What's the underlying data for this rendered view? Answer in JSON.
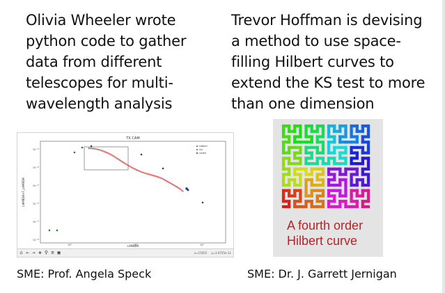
{
  "left_panel": {
    "description_lines": [
      "Olivia Wheeler wrote",
      "python code to gather",
      "data from different",
      "telescopes for multi-",
      "wavelength analysis"
    ],
    "sme": "SME: Prof. Angela Speck",
    "plot": {
      "title": "TX CAM",
      "xlabel": "LAMBDA",
      "ylabel": "LAMBDA×F_LAMBDA",
      "legend": [
        {
          "label": "SIMBAD",
          "color": "#1f7a2a"
        },
        {
          "label": "ISO",
          "color": "#d62728"
        },
        {
          "label": "VIZIER",
          "color": "#1f3a93"
        }
      ],
      "x_tick_labels": [
        "10⁰",
        "10¹",
        "10²"
      ],
      "y_tick_labels": [
        "10⁻¹³",
        "10⁻¹⁴",
        "10⁻¹⁵",
        "10⁻¹⁶",
        "10⁻¹⁷",
        "10⁻¹⁸"
      ],
      "toolbar_icons": [
        "home-icon",
        "back-icon",
        "forward-icon",
        "pan-icon",
        "zoom-icon",
        "configure-icon",
        "save-icon"
      ],
      "toolbar_glyphs": [
        "⌂",
        "←",
        "→",
        "✥",
        "⚲",
        "≡",
        "▣"
      ],
      "readout": [
        "x=15055",
        "y=3.6755e-11"
      ]
    }
  },
  "right_panel": {
    "description_lines": [
      "Trevor Hoffman is devising",
      "a method to use space-",
      "filling Hilbert curves to",
      "extend the KS test to more",
      "than one dimension"
    ],
    "sme": "SME: Dr. J. Garrett Jernigan",
    "hilbert_caption_lines": [
      "A fourth order",
      "Hilbert curve"
    ],
    "hilbert_order": 4
  }
}
